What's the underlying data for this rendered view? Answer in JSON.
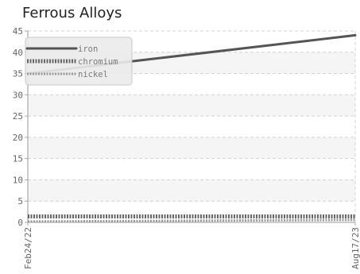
{
  "chart_data": {
    "type": "line",
    "title": "Ferrous Alloys",
    "xlabel": "",
    "ylabel": "",
    "x": [
      "Feb24/22",
      "Aug17/23"
    ],
    "ylim": [
      0,
      45
    ],
    "yticks": [
      0,
      5,
      10,
      15,
      20,
      25,
      30,
      35,
      40,
      45
    ],
    "xticks": [
      "Feb24/22",
      "Aug17/23"
    ],
    "grid": true,
    "legend_position": "top-left",
    "series": [
      {
        "name": "iron",
        "values": [
          35,
          44
        ],
        "color": "#555555",
        "style": "solid"
      },
      {
        "name": "chromium",
        "values": [
          1.4,
          1.4
        ],
        "color": "#666666",
        "style": "dashed"
      },
      {
        "name": "nickel",
        "values": [
          0.2,
          0.6
        ],
        "color": "#999999",
        "style": "dashed"
      }
    ]
  }
}
